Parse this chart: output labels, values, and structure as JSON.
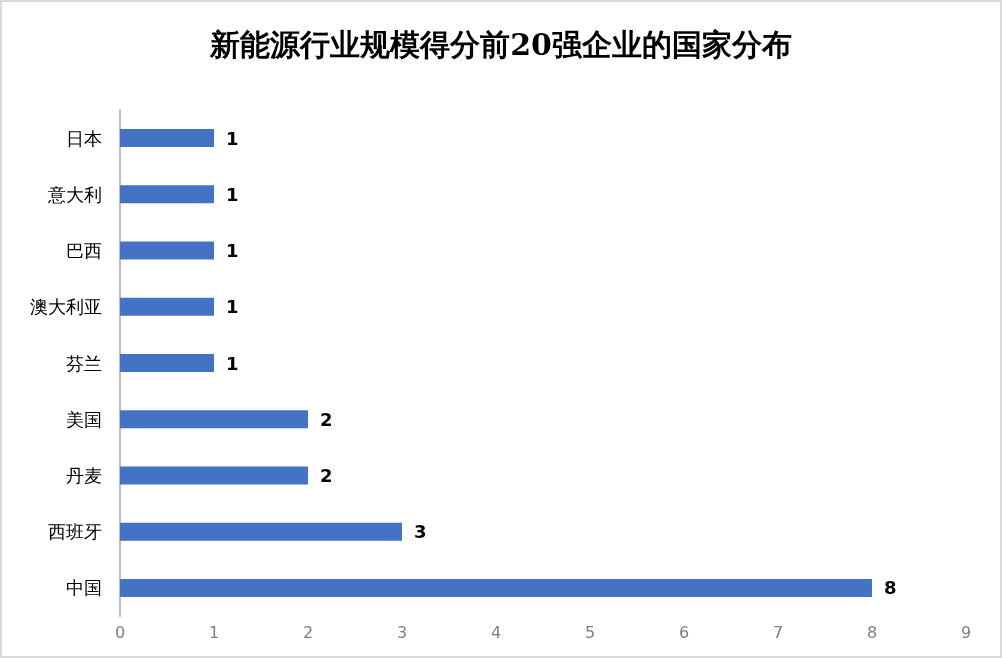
{
  "chart_data": {
    "type": "bar",
    "title": "新能源行业规模得分前20强企业的国家分布",
    "orientation": "horizontal",
    "categories": [
      "日本",
      "意大利",
      "巴西",
      "澳大利亚",
      "芬兰",
      "美国",
      "丹麦",
      "西班牙",
      "中国"
    ],
    "values": [
      1,
      1,
      1,
      1,
      1,
      2,
      2,
      3,
      8
    ],
    "color": "#4472c4",
    "xlim": [
      0,
      9
    ],
    "xticks": [
      0,
      1,
      2,
      3,
      4,
      5,
      6,
      7,
      8,
      9
    ],
    "grid": false,
    "data_labels": true
  }
}
